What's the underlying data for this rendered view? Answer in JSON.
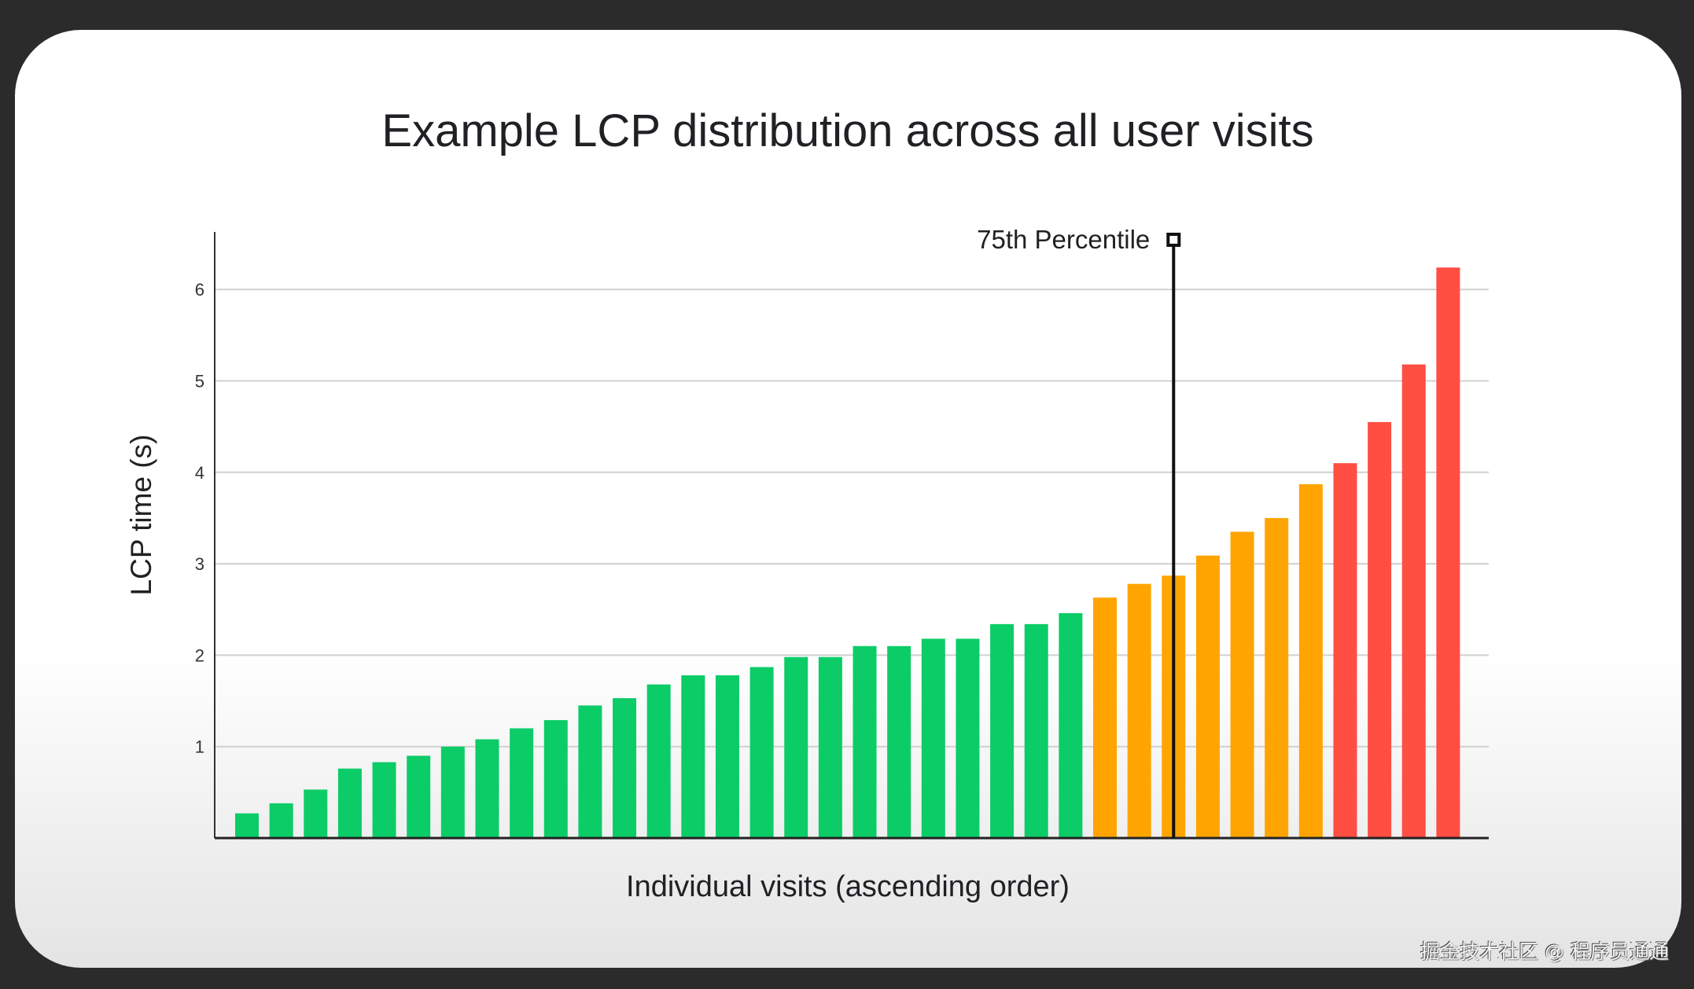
{
  "chart_data": {
    "type": "bar",
    "title": "Example LCP distribution across all user visits",
    "xlabel": "Individual visits (ascending order)",
    "ylabel": "LCP time (s)",
    "ylim": [
      0,
      6.6
    ],
    "yticks": [
      "1",
      "2",
      "3",
      "4",
      "5",
      "6"
    ],
    "grid": true,
    "values": [
      0.27,
      0.38,
      0.53,
      0.76,
      0.83,
      0.9,
      1.0,
      1.08,
      1.2,
      1.29,
      1.45,
      1.53,
      1.68,
      1.78,
      1.78,
      1.87,
      1.98,
      1.98,
      2.1,
      2.1,
      2.18,
      2.18,
      2.34,
      2.34,
      2.46,
      2.63,
      2.78,
      2.87,
      3.09,
      3.35,
      3.5,
      3.87,
      4.1,
      4.55,
      5.18,
      6.24
    ],
    "categories_color": [
      "good",
      "good",
      "good",
      "good",
      "good",
      "good",
      "good",
      "good",
      "good",
      "good",
      "good",
      "good",
      "good",
      "good",
      "good",
      "good",
      "good",
      "good",
      "good",
      "good",
      "good",
      "good",
      "good",
      "good",
      "good",
      "needs-improvement",
      "needs-improvement",
      "needs-improvement",
      "needs-improvement",
      "needs-improvement",
      "needs-improvement",
      "needs-improvement",
      "poor",
      "poor",
      "poor",
      "poor"
    ],
    "colors": {
      "good": "#0ccc68",
      "needs-improvement": "#ffa400",
      "poor": "#ff4e42"
    },
    "annotation": {
      "label": "75th Percentile",
      "after_bar_index": 27
    }
  },
  "watermark": "掘金技术社区 @ 程序员通通"
}
